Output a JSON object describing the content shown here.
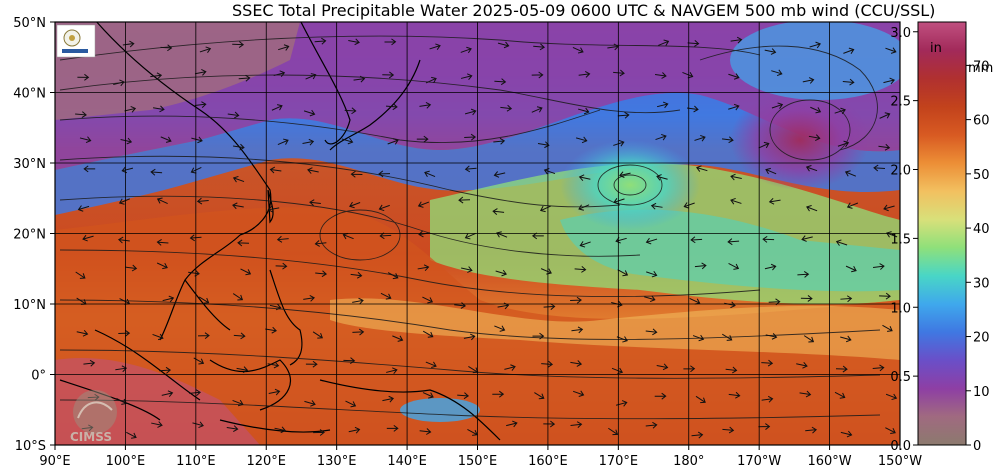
{
  "title": "SSEC Total Precipitable Water  2025-05-09 0600 UTC & NAVGEM 500 mb wind (CCU/SSL)",
  "map": {
    "lon_min": 90,
    "lon_max": 210,
    "lat_min": -10,
    "lat_max": 50,
    "lat_labels": [
      "50°N",
      "40°N",
      "30°N",
      "20°N",
      "10°N",
      "0°",
      "10°S"
    ],
    "lat_values": [
      50,
      40,
      30,
      20,
      10,
      0,
      -10
    ],
    "lon_labels": [
      "90°E",
      "100°E",
      "110°E",
      "120°E",
      "130°E",
      "140°E",
      "150°E",
      "160°E",
      "170°E",
      "180°",
      "170°W",
      "160°W",
      "150°W"
    ],
    "lon_values": [
      90,
      100,
      110,
      120,
      130,
      140,
      150,
      160,
      170,
      180,
      190,
      200,
      210
    ]
  },
  "colorbar": {
    "inch_unit": "in",
    "mm_unit": "mm",
    "inch_ticks": [
      "3.0",
      "2.5",
      "2.0",
      "1.5",
      "1.0",
      "0.5",
      "0.0"
    ],
    "inch_values": [
      3.0,
      2.5,
      2.0,
      1.5,
      1.0,
      0.5,
      0.0
    ],
    "mm_ticks": [
      "70",
      "60",
      "50",
      "40",
      "30",
      "20",
      "10",
      "0"
    ],
    "mm_values": [
      70,
      60,
      50,
      40,
      30,
      20,
      10,
      0
    ],
    "mm_max": 78,
    "colors": [
      "#8c7a6e",
      "#a06a80",
      "#8e3fa4",
      "#6a4fc8",
      "#3f78e2",
      "#3fa8ec",
      "#49d6c6",
      "#8fe07a",
      "#d8e07a",
      "#f2c060",
      "#ec8e36",
      "#d85a22",
      "#c2421c",
      "#b03030",
      "#a22a5a",
      "#c05080"
    ]
  },
  "logos": {
    "cimss": "CIMSS"
  }
}
